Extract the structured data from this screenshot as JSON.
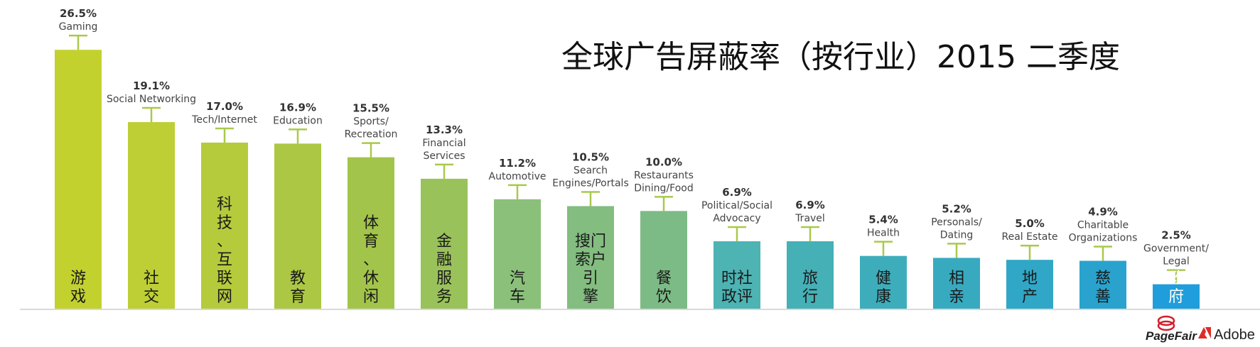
{
  "chart_data": {
    "type": "bar",
    "title": "全球广告屏蔽率（按行业）2015 二季度",
    "xlabel": "",
    "ylabel": "",
    "ylim": [
      0,
      30
    ],
    "grid": false,
    "legend": "none",
    "categories": [
      {
        "pct": "26.5%",
        "value": 26.5,
        "en": [
          "Gaming"
        ],
        "zh": [
          "游戏"
        ],
        "color": "#C3D12F",
        "light": false
      },
      {
        "pct": "19.1%",
        "value": 19.1,
        "en": [
          "Social Networking"
        ],
        "zh": [
          "社交"
        ],
        "color": "#BDCF35",
        "light": false
      },
      {
        "pct": "17.0%",
        "value": 17.0,
        "en": [
          "Tech/Internet"
        ],
        "zh": [
          "科技、互联网"
        ],
        "color": "#B5CB3C",
        "light": false
      },
      {
        "pct": "16.9%",
        "value": 16.9,
        "en": [
          "Education"
        ],
        "zh": [
          "教育"
        ],
        "color": "#ACC743",
        "light": false
      },
      {
        "pct": "15.5%",
        "value": 15.5,
        "en": [
          "Sports/",
          "Recreation"
        ],
        "zh": [
          "体育、休闲"
        ],
        "color": "#A3C44A",
        "light": false
      },
      {
        "pct": "13.3%",
        "value": 13.3,
        "en": [
          "Financial",
          "Services"
        ],
        "zh": [
          "金融服务"
        ],
        "color": "#9AC25A",
        "light": false
      },
      {
        "pct": "11.2%",
        "value": 11.2,
        "en": [
          "Automotive"
        ],
        "zh": [
          "汽车"
        ],
        "color": "#8BC07A",
        "light": false
      },
      {
        "pct": "10.5%",
        "value": 10.5,
        "en": [
          "Search",
          "Engines/Portals"
        ],
        "zh": [
          "搜门",
          "索户",
          "引",
          "擎"
        ],
        "color": "#83BD80",
        "light": false
      },
      {
        "pct": "10.0%",
        "value": 10.0,
        "en": [
          "Restaurants",
          "Dining/Food"
        ],
        "zh": [
          "餐饮"
        ],
        "color": "#7DBB86",
        "light": false
      },
      {
        "pct": "6.9%",
        "value": 6.9,
        "en": [
          "Political/Social",
          "Advocacy"
        ],
        "zh": [
          "时社",
          "政评"
        ],
        "color": "#4DB3B3",
        "light": false
      },
      {
        "pct": "6.9%",
        "value": 6.9,
        "en": [
          "Travel"
        ],
        "zh": [
          "旅行"
        ],
        "color": "#45B0B6",
        "light": false
      },
      {
        "pct": "5.4%",
        "value": 5.4,
        "en": [
          "Health"
        ],
        "zh": [
          "健康"
        ],
        "color": "#3EADBB",
        "light": false
      },
      {
        "pct": "5.2%",
        "value": 5.2,
        "en": [
          "Personals/",
          "Dating"
        ],
        "zh": [
          "相亲"
        ],
        "color": "#37AAC0",
        "light": false
      },
      {
        "pct": "5.0%",
        "value": 5.0,
        "en": [
          "Real Estate"
        ],
        "zh": [
          "地产"
        ],
        "color": "#30A7C6",
        "light": false
      },
      {
        "pct": "4.9%",
        "value": 4.9,
        "en": [
          "Charitable",
          "Organizations"
        ],
        "zh": [
          "慈善"
        ],
        "color": "#29A3CE",
        "light": false
      },
      {
        "pct": "2.5%",
        "value": 2.5,
        "en": [
          "Government/",
          "Legal"
        ],
        "zh": [
          "政府"
        ],
        "color": "#1F9EDB",
        "light": true
      }
    ]
  },
  "logos": {
    "pagefair": "PageFair",
    "adobe": "Adobe"
  },
  "colors": {
    "whisker": "#A9C94A",
    "axis": "#D9D9D9",
    "adobe_red": "#E12A26",
    "pagefair_red": "#D31F2B"
  }
}
